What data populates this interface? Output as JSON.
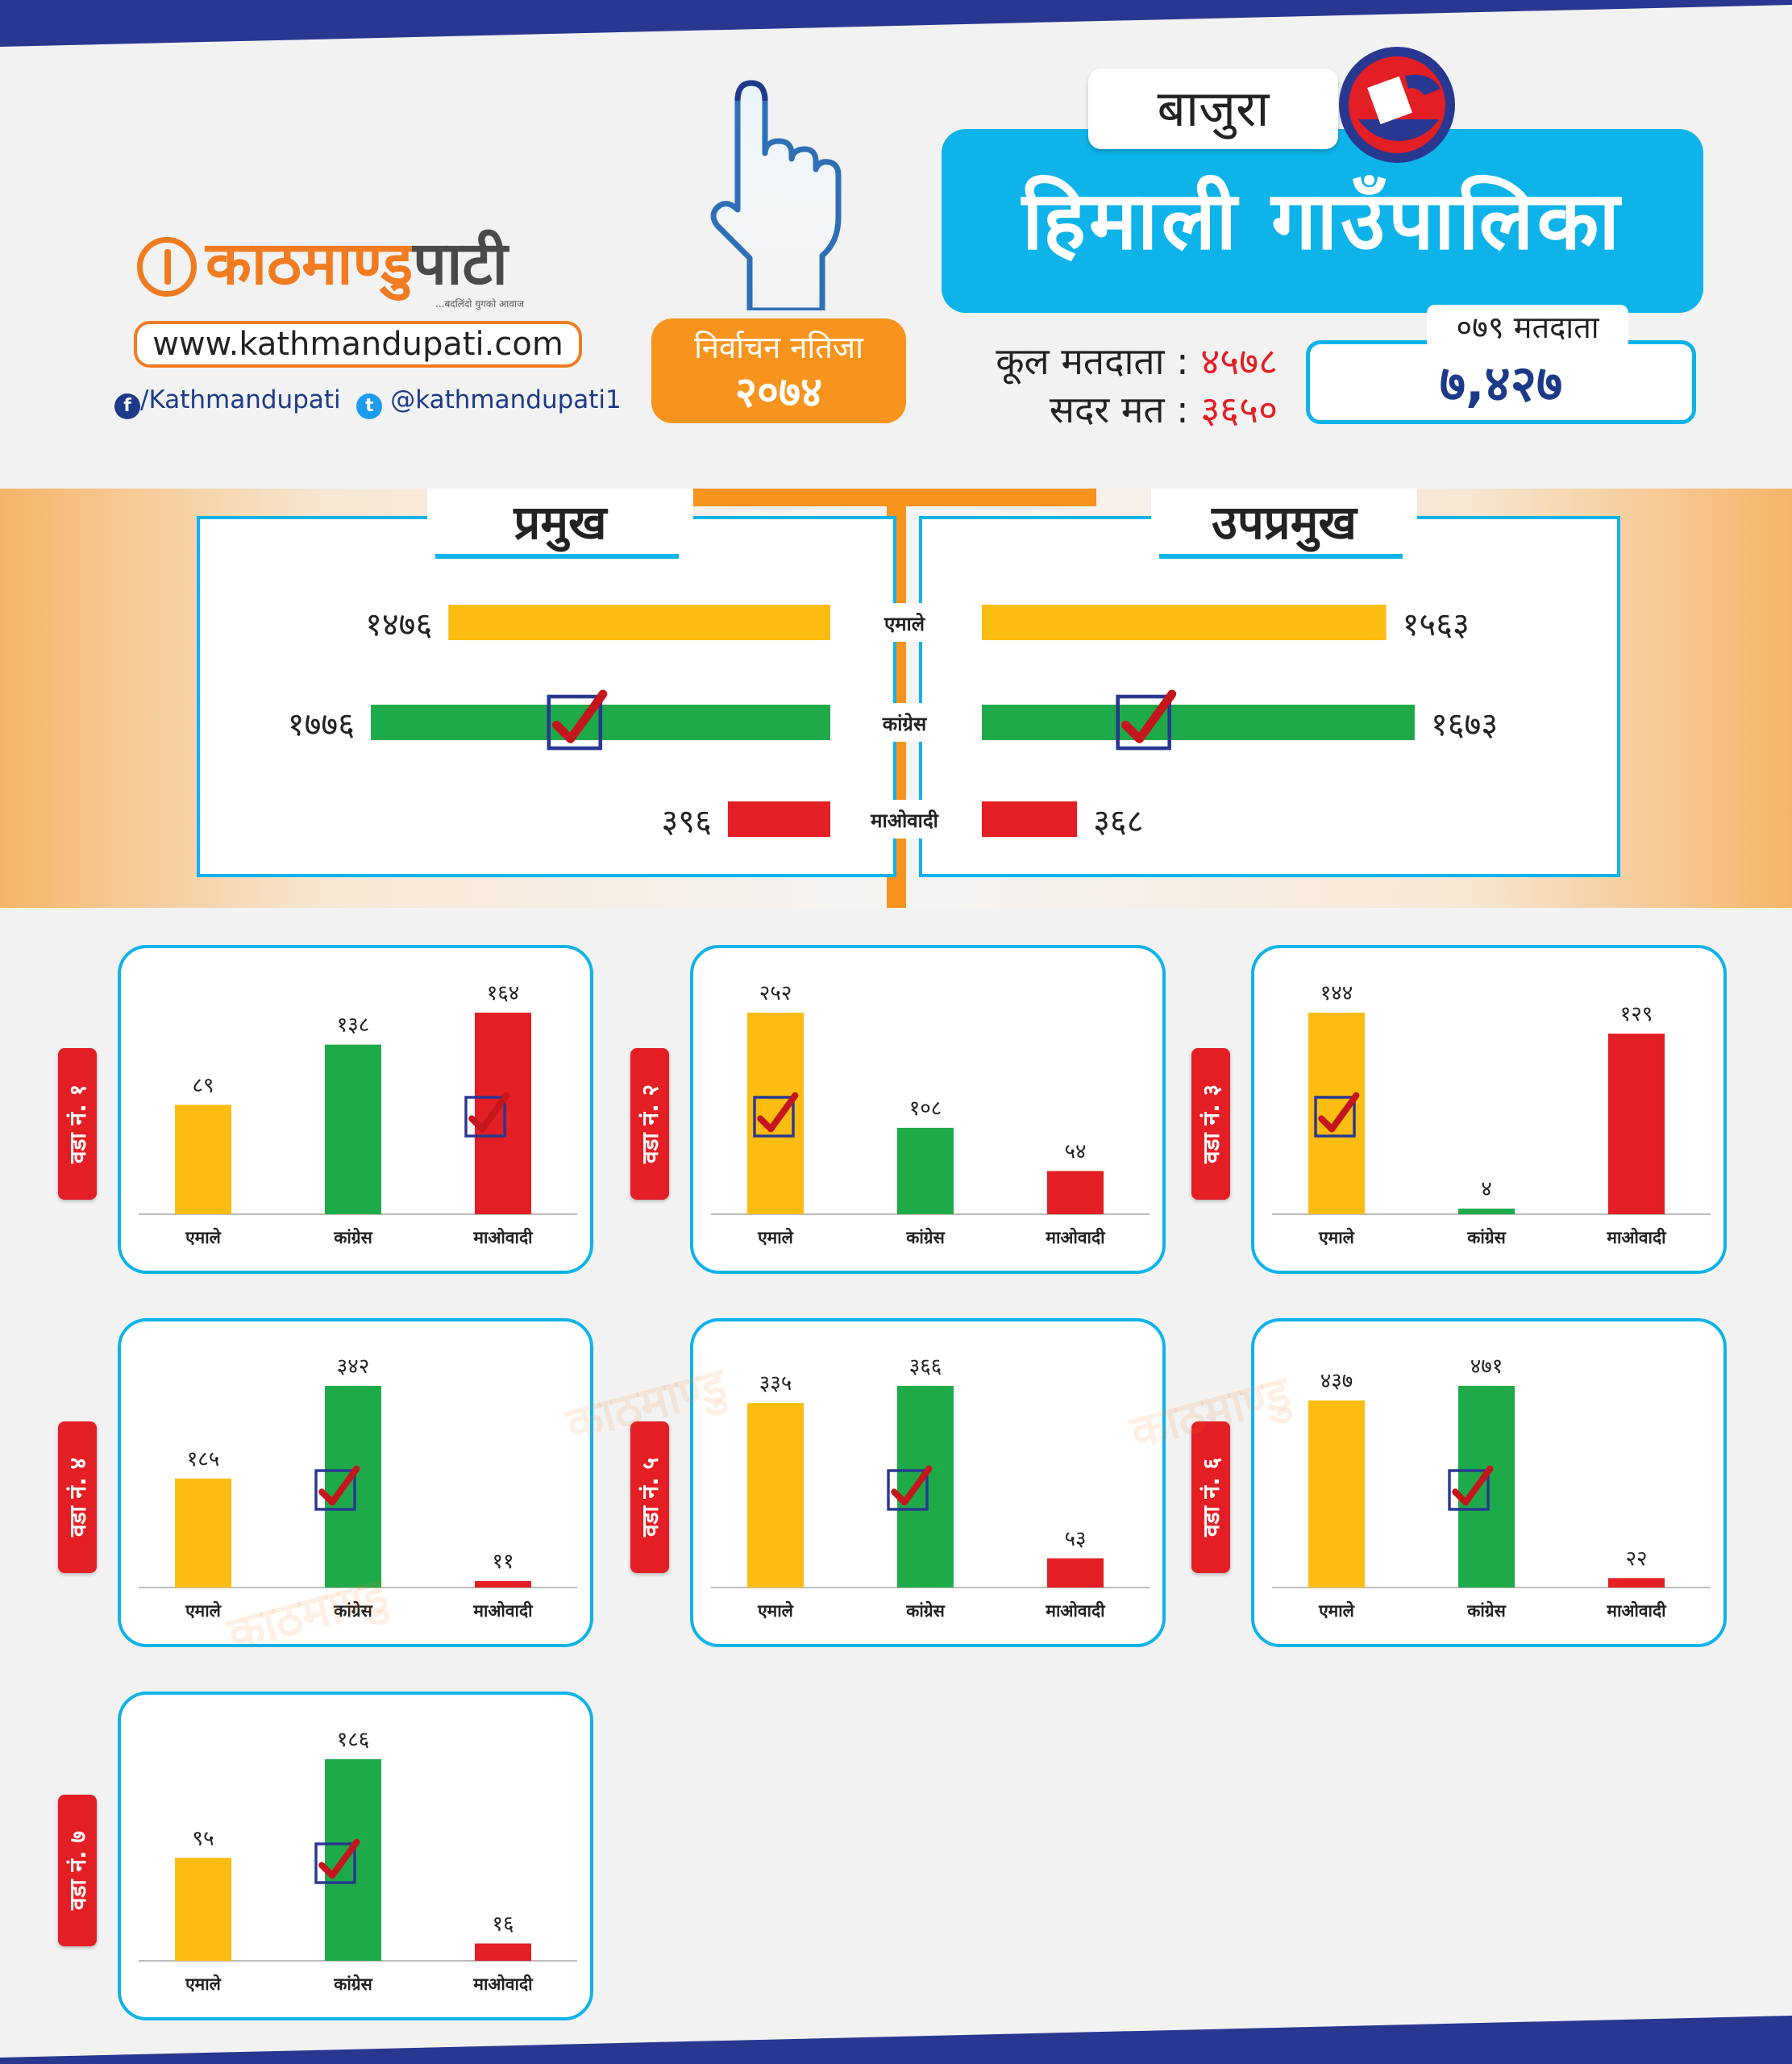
{
  "colors": {
    "navy": "#283891",
    "accent_blue": "#0eb3ea",
    "orange": "#f7941d",
    "yellow": "#fdbc11",
    "green": "#1faa4a",
    "red": "#e31e24"
  },
  "brand": {
    "logo_part1": "काठमाण्डु",
    "logo_part2": "पाटी",
    "tagline": "...बदलिंदो युगको आवाज",
    "url": "www.kathmandupati.com",
    "facebook": "/Kathmandupati",
    "twitter": "@kathmandupati1"
  },
  "badge": {
    "line1": "निर्वाचन नतिजा",
    "line2": "२०७४"
  },
  "header": {
    "district": "बाजुरा",
    "municipality": "हिमाली  गाउँपालिका",
    "total_voters_label": "कूल मतदाता :",
    "total_voters_value": "४५७८",
    "valid_votes_label": "सदर मत :",
    "valid_votes_value": "३६५०",
    "voters_079_label": "०७९ मतदाता",
    "voters_079_value": "७,४२७"
  },
  "chart_data": [
    {
      "type": "bar",
      "title": "प्रमुख",
      "categories": [
        "एमाले",
        "कांग्रेस",
        "माओवादी"
      ],
      "values": [
        1476,
        1776,
        396
      ],
      "labels": [
        "१४७६",
        "१७७६",
        "३९६"
      ],
      "colors": [
        "#fdbc11",
        "#1faa4a",
        "#e31e24"
      ],
      "winner": "कांग्रेस"
    },
    {
      "type": "bar",
      "title": "उपप्रमुख",
      "categories": [
        "एमाले",
        "कांग्रेस",
        "माओवादी"
      ],
      "values": [
        1563,
        1673,
        368
      ],
      "labels": [
        "१५६३",
        "१६७३",
        "३६८"
      ],
      "colors": [
        "#fdbc11",
        "#1faa4a",
        "#e31e24"
      ],
      "winner": "कांग्रेस"
    },
    {
      "type": "bar",
      "title": "वडा नं. १",
      "categories": [
        "एमाले",
        "कांग्रेस",
        "माओवादी"
      ],
      "values": [
        89,
        138,
        164
      ],
      "labels": [
        "८९",
        "१३८",
        "१६४"
      ],
      "winner": "माओवादी"
    },
    {
      "type": "bar",
      "title": "वडा नं. २",
      "categories": [
        "एमाले",
        "कांग्रेस",
        "माओवादी"
      ],
      "values": [
        252,
        108,
        54
      ],
      "labels": [
        "२५२",
        "१०८",
        "५४"
      ],
      "winner": "एमाले"
    },
    {
      "type": "bar",
      "title": "वडा नं. ३",
      "categories": [
        "एमाले",
        "कांग्रेस",
        "माओवादी"
      ],
      "values": [
        144,
        4,
        129
      ],
      "labels": [
        "१४४",
        "४",
        "१२९"
      ],
      "winner": "एमाले"
    },
    {
      "type": "bar",
      "title": "वडा नं. ४",
      "categories": [
        "एमाले",
        "कांग्रेस",
        "माओवादी"
      ],
      "values": [
        185,
        342,
        11
      ],
      "labels": [
        "१८५",
        "३४२",
        "११"
      ],
      "winner": "कांग्रेस"
    },
    {
      "type": "bar",
      "title": "वडा नं. ५",
      "categories": [
        "एमाले",
        "कांग्रेस",
        "माओवादी"
      ],
      "values": [
        335,
        366,
        53
      ],
      "labels": [
        "३३५",
        "३६६",
        "५३"
      ],
      "winner": "कांग्रेस"
    },
    {
      "type": "bar",
      "title": "वडा नं. ६",
      "categories": [
        "एमाले",
        "कांग्रेस",
        "माओवादी"
      ],
      "values": [
        437,
        471,
        22
      ],
      "labels": [
        "४३७",
        "४७१",
        "२२"
      ],
      "winner": "कांग्रेस"
    },
    {
      "type": "bar",
      "title": "वडा नं. ७",
      "categories": [
        "एमाले",
        "कांग्रेस",
        "माओवादी"
      ],
      "values": [
        95,
        186,
        16
      ],
      "labels": [
        "९५",
        "१८६",
        "१६"
      ],
      "winner": "कांग्रेस"
    }
  ]
}
